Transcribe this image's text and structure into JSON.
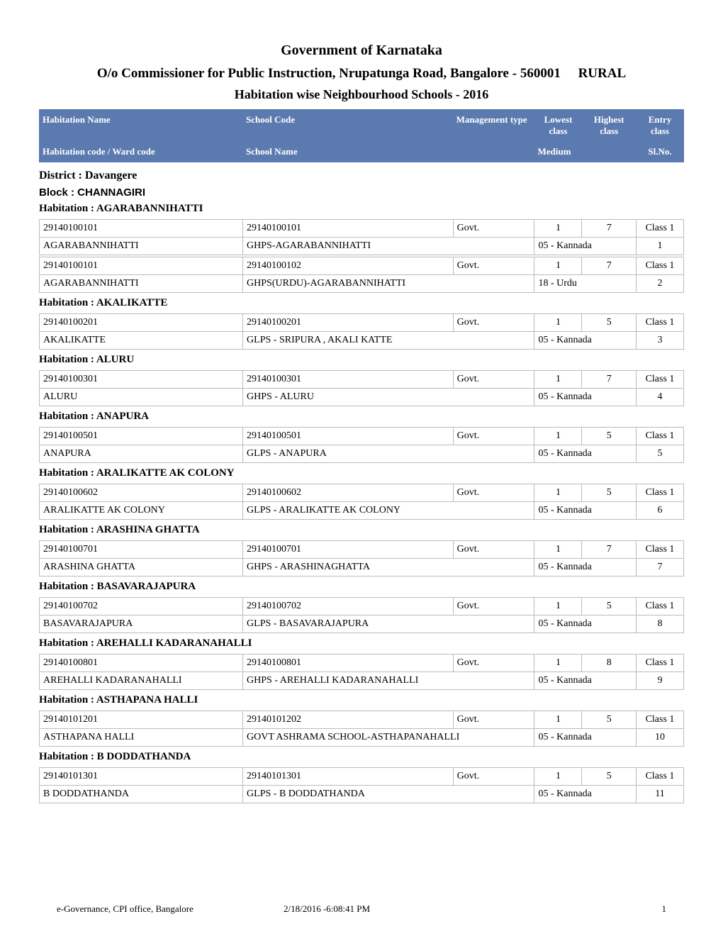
{
  "styles": {
    "page_background": "#ffffff",
    "header_row_bg": "#5b7aaf",
    "header_row_fg": "#ffffff",
    "cell_border_color": "#bbbbbb",
    "font_family": "Times New Roman",
    "title_fontsize": 20,
    "subtitle_fontsize": 19,
    "report_title_fontsize": 18,
    "heading_fontsize": 15,
    "cell_fontsize": 14,
    "footer_fontsize": 13
  },
  "column_widths_pct": {
    "col1": 30,
    "col2": 31,
    "col3": 12,
    "col4": 7,
    "col5": 8,
    "col6": 7,
    "medium_col": 15,
    "slno_col": 7
  },
  "header": {
    "title": "Government of Karnataka",
    "subtitle": "O/o Commissioner for Public Instruction, Nrupatunga Road, Bangalore - 560001",
    "rural": "RURAL",
    "report_title": "Habitation wise Neighbourhood Schools  - 2016"
  },
  "columns_row1": {
    "habitation_name": "Habitation Name",
    "school_code": "School Code",
    "management_type": "Management type",
    "lowest_class": "Lowest class",
    "highest_class": "Highest class",
    "entry_class": "Entry class"
  },
  "columns_row2": {
    "habitation_code": "Habitation code / Ward code",
    "school_name": "School Name",
    "medium": "Medium",
    "slno": "Sl.No."
  },
  "district_label": "District : Davangere",
  "block_label": "Block : CHANNAGIRI",
  "sections": [
    {
      "heading": "Habitation : AGARABANNIHATTI",
      "rows": [
        {
          "r1": {
            "code": "29140100101",
            "school_code": "29140100101",
            "mgmt": "Govt.",
            "low": "1",
            "high": "7",
            "entry": "Class 1"
          },
          "r2": {
            "hab_name": "AGARABANNIHATTI",
            "school_name": "GHPS-AGARABANNIHATTI",
            "medium": "05 - Kannada",
            "slno": "1"
          }
        },
        {
          "r1": {
            "code": "29140100101",
            "school_code": "29140100102",
            "mgmt": "Govt.",
            "low": "1",
            "high": "7",
            "entry": "Class 1"
          },
          "r2": {
            "hab_name": "AGARABANNIHATTI",
            "school_name": "GHPS(URDU)-AGARABANNIHATTI",
            "medium": "18 - Urdu",
            "slno": "2"
          }
        }
      ]
    },
    {
      "heading": "Habitation : AKALIKATTE",
      "rows": [
        {
          "r1": {
            "code": "29140100201",
            "school_code": "29140100201",
            "mgmt": "Govt.",
            "low": "1",
            "high": "5",
            "entry": "Class 1"
          },
          "r2": {
            "hab_name": "AKALIKATTE",
            "school_name": "GLPS - SRIPURA , AKALI KATTE",
            "medium": "05 - Kannada",
            "slno": "3"
          }
        }
      ]
    },
    {
      "heading": "Habitation : ALURU",
      "rows": [
        {
          "r1": {
            "code": "29140100301",
            "school_code": "29140100301",
            "mgmt": "Govt.",
            "low": "1",
            "high": "7",
            "entry": "Class 1"
          },
          "r2": {
            "hab_name": "ALURU",
            "school_name": "GHPS - ALURU",
            "medium": "05 - Kannada",
            "slno": "4"
          }
        }
      ]
    },
    {
      "heading": "Habitation : ANAPURA",
      "rows": [
        {
          "r1": {
            "code": "29140100501",
            "school_code": "29140100501",
            "mgmt": "Govt.",
            "low": "1",
            "high": "5",
            "entry": "Class 1"
          },
          "r2": {
            "hab_name": "ANAPURA",
            "school_name": "GLPS - ANAPURA",
            "medium": "05 - Kannada",
            "slno": "5"
          }
        }
      ]
    },
    {
      "heading": "Habitation : ARALIKATTE AK COLONY",
      "rows": [
        {
          "r1": {
            "code": "29140100602",
            "school_code": "29140100602",
            "mgmt": "Govt.",
            "low": "1",
            "high": "5",
            "entry": "Class 1"
          },
          "r2": {
            "hab_name": "ARALIKATTE AK COLONY",
            "school_name": "GLPS - ARALIKATTE AK COLONY",
            "medium": "05 - Kannada",
            "slno": "6"
          }
        }
      ]
    },
    {
      "heading": "Habitation : ARASHINA GHATTA",
      "rows": [
        {
          "r1": {
            "code": "29140100701",
            "school_code": "29140100701",
            "mgmt": "Govt.",
            "low": "1",
            "high": "7",
            "entry": "Class 1"
          },
          "r2": {
            "hab_name": "ARASHINA GHATTA",
            "school_name": "GHPS - ARASHINAGHATTA",
            "medium": "05 - Kannada",
            "slno": "7"
          }
        }
      ]
    },
    {
      "heading": "Habitation : BASAVARAJAPURA",
      "rows": [
        {
          "r1": {
            "code": "29140100702",
            "school_code": "29140100702",
            "mgmt": "Govt.",
            "low": "1",
            "high": "5",
            "entry": "Class 1"
          },
          "r2": {
            "hab_name": "BASAVARAJAPURA",
            "school_name": "GLPS - BASAVARAJAPURA",
            "medium": "05 - Kannada",
            "slno": "8"
          }
        }
      ]
    },
    {
      "heading": "Habitation : AREHALLI KADARANAHALLI",
      "rows": [
        {
          "r1": {
            "code": "29140100801",
            "school_code": "29140100801",
            "mgmt": "Govt.",
            "low": "1",
            "high": "8",
            "entry": "Class 1"
          },
          "r2": {
            "hab_name": "AREHALLI KADARANAHALLI",
            "school_name": "GHPS - AREHALLI KADARANAHALLI",
            "medium": "05 - Kannada",
            "slno": "9"
          }
        }
      ]
    },
    {
      "heading": "Habitation : ASTHAPANA HALLI",
      "rows": [
        {
          "r1": {
            "code": "29140101201",
            "school_code": "29140101202",
            "mgmt": "Govt.",
            "low": "1",
            "high": "5",
            "entry": "Class 1"
          },
          "r2": {
            "hab_name": "ASTHAPANA HALLI",
            "school_name": "GOVT ASHRAMA SCHOOL-ASTHAPANAHALLI",
            "medium": "05 - Kannada",
            "slno": "10"
          }
        }
      ]
    },
    {
      "heading": "Habitation : B DODDATHANDA",
      "rows": [
        {
          "r1": {
            "code": "29140101301",
            "school_code": "29140101301",
            "mgmt": "Govt.",
            "low": "1",
            "high": "5",
            "entry": "Class 1"
          },
          "r2": {
            "hab_name": "B DODDATHANDA",
            "school_name": "GLPS - B DODDATHANDA",
            "medium": "05 - Kannada",
            "slno": "11"
          }
        }
      ]
    }
  ],
  "footer": {
    "left": "e-Governance, CPI office, Bangalore",
    "mid": "2/18/2016 -6:08:41 PM",
    "page": "1"
  }
}
